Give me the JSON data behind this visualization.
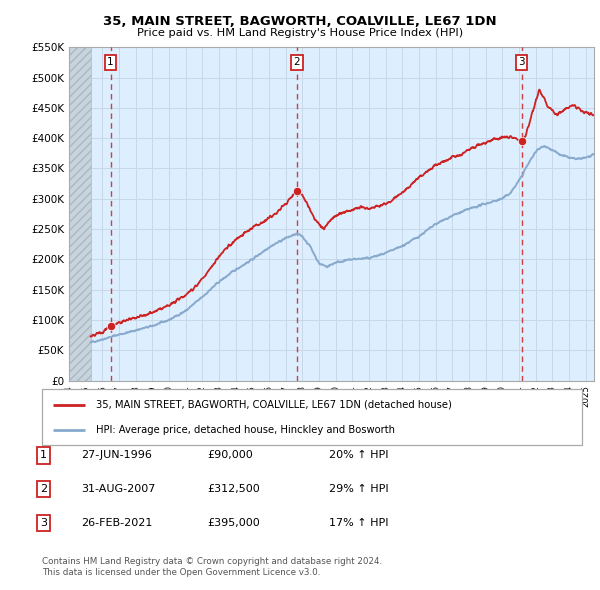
{
  "title": "35, MAIN STREET, BAGWORTH, COALVILLE, LE67 1DN",
  "subtitle": "Price paid vs. HM Land Registry's House Price Index (HPI)",
  "legend_line1": "35, MAIN STREET, BAGWORTH, COALVILLE, LE67 1DN (detached house)",
  "legend_line2": "HPI: Average price, detached house, Hinckley and Bosworth",
  "footnote1": "Contains HM Land Registry data © Crown copyright and database right 2024.",
  "footnote2": "This data is licensed under the Open Government Licence v3.0.",
  "transactions": [
    {
      "num": 1,
      "date": "27-JUN-1996",
      "price": "£90,000",
      "hpi": "20% ↑ HPI"
    },
    {
      "num": 2,
      "date": "31-AUG-2007",
      "price": "£312,500",
      "hpi": "29% ↑ HPI"
    },
    {
      "num": 3,
      "date": "26-FEB-2021",
      "price": "£395,000",
      "hpi": "17% ↑ HPI"
    }
  ],
  "transaction_years": [
    1996.49,
    2007.66,
    2021.15
  ],
  "transaction_prices": [
    90000,
    312500,
    395000
  ],
  "ylim": [
    0,
    550000
  ],
  "yticks": [
    0,
    50000,
    100000,
    150000,
    200000,
    250000,
    300000,
    350000,
    400000,
    450000,
    500000,
    550000
  ],
  "xlim_start": 1994.0,
  "xlim_end": 2025.5,
  "data_start_year": 1995.3,
  "red_color": "#cc2222",
  "blue_color": "#88aacc",
  "grid_color": "#c8d8e8",
  "background_color": "#ddeeff",
  "hatch_color": "#c0ccd8"
}
